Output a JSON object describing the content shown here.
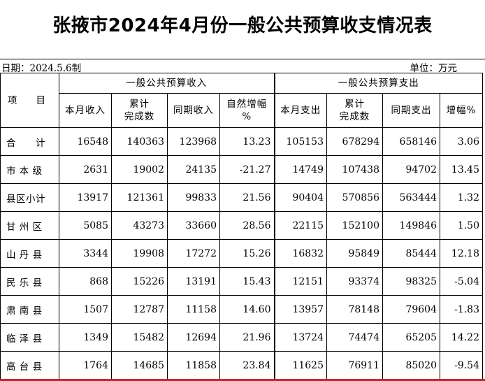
{
  "title": "张掖市2024年4月份一般公共预算收支情况表",
  "date_label": "日期：2024.5.6制",
  "unit_label": "单位：万元",
  "header": {
    "item": "项　　目",
    "revenue_group": "一般公共预算收入",
    "expenditure_group": "一般公共预算支出",
    "revenue_cols": [
      "本月收入",
      "累计\n完成数",
      "同期收入",
      "自然增幅\n%"
    ],
    "expenditure_cols": [
      "本月支出",
      "累计\n完成数",
      "同期支出",
      "增幅%"
    ]
  },
  "rows": [
    {
      "name": "合　　计",
      "cells": [
        "16548",
        "140363",
        "123968",
        "13.23",
        "105153",
        "678294",
        "658146",
        "3.06"
      ]
    },
    {
      "name": "市 本 级",
      "cells": [
        "2631",
        "19002",
        "24135",
        "-21.27",
        "14749",
        "107438",
        "94702",
        "13.45"
      ]
    },
    {
      "name": "县区小计",
      "cells": [
        "13917",
        "121361",
        "99833",
        "21.56",
        "90404",
        "570856",
        "563444",
        "1.32"
      ]
    },
    {
      "name": "甘 州 区",
      "cells": [
        "5085",
        "43273",
        "33660",
        "28.56",
        "22115",
        "152100",
        "149846",
        "1.50"
      ]
    },
    {
      "name": "山 丹 县",
      "cells": [
        "3344",
        "19908",
        "17272",
        "15.26",
        "16832",
        "95849",
        "85444",
        "12.18"
      ]
    },
    {
      "name": "民 乐 县",
      "cells": [
        "868",
        "15226",
        "13191",
        "15.43",
        "12151",
        "93374",
        "98325",
        "-5.04"
      ]
    },
    {
      "name": "肃 南 县",
      "cells": [
        "1507",
        "12787",
        "11158",
        "14.60",
        "13957",
        "78148",
        "79604",
        "-1.83"
      ]
    },
    {
      "name": "临 泽 县",
      "cells": [
        "1349",
        "15482",
        "12694",
        "21.96",
        "13724",
        "74474",
        "65205",
        "14.22"
      ]
    },
    {
      "name": "高 台 县",
      "cells": [
        "1764",
        "14685",
        "11858",
        "23.84",
        "11625",
        "76911",
        "85020",
        "-9.54"
      ]
    }
  ]
}
